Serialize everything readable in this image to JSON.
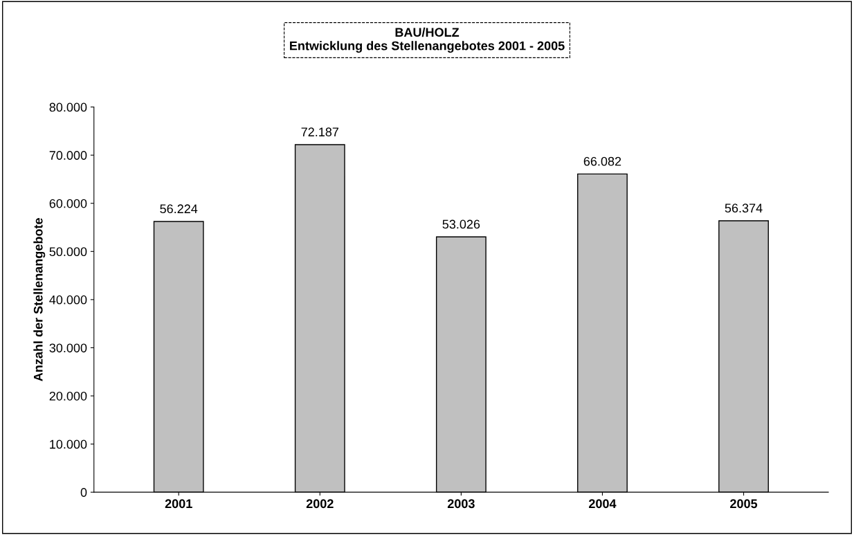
{
  "chart_data": {
    "type": "bar",
    "title": "BAU/HOLZ\nEntwicklung des Stellenangebotes 2001 - 2005",
    "ylabel": "Anzahl der Stellenangebote",
    "categories": [
      "2001",
      "2002",
      "2003",
      "2004",
      "2005"
    ],
    "values": [
      56224,
      72187,
      53026,
      66082,
      56374
    ],
    "value_labels": [
      "56.224",
      "72.187",
      "53.026",
      "66.082",
      "56.374"
    ],
    "color": "#c0c0c0",
    "ylim": [
      0,
      80000
    ],
    "yticks": [
      0,
      {
        "value": 10000,
        "label": "10.000"
      },
      {
        "value": 20000,
        "label": "20.000"
      },
      {
        "value": 30000,
        "label": "30.000"
      },
      {
        "value": 40000,
        "label": "40.000"
      },
      {
        "value": 50000,
        "label": "50.000"
      },
      {
        "value": 60000,
        "label": "60.000"
      },
      {
        "value": 70000,
        "label": "70.000"
      },
      {
        "value": 80000,
        "label": "80.000"
      }
    ],
    "grid": false,
    "legend": false
  }
}
